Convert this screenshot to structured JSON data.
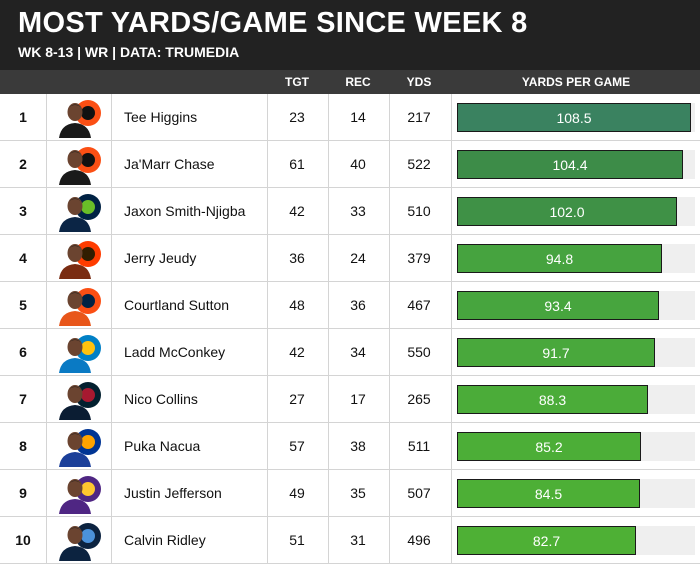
{
  "header": {
    "title": "MOST YARDS/GAME SINCE WEEK 8",
    "subtitle": "WK 8-13 | WR | DATA: TRUMEDIA"
  },
  "columns": {
    "tgt": "TGT",
    "rec": "REC",
    "yds": "YDS",
    "ypg": "YARDS PER GAME"
  },
  "chart_data": {
    "type": "table",
    "title": "MOST YARDS/GAME SINCE WEEK 8",
    "subtitle": "WK 8-13 | WR | DATA: TRUMEDIA",
    "columns": [
      "TGT",
      "REC",
      "YDS",
      "YARDS PER GAME"
    ],
    "bar_column": "YARDS PER GAME",
    "bar_max": 108.5,
    "rows": [
      {
        "rank": "1",
        "player": "Tee Higgins",
        "team_logo": "bengals-logo-icon",
        "tgt": 23,
        "rec": 14,
        "yds": 217,
        "ypg": 108.5,
        "bar_color": "#3a8260"
      },
      {
        "rank": "2",
        "player": "Ja'Marr Chase",
        "team_logo": "bengals-logo-icon",
        "tgt": 61,
        "rec": 40,
        "yds": 522,
        "ypg": 104.4,
        "bar_color": "#3d8c48"
      },
      {
        "rank": "3",
        "player": "Jaxon Smith-Njigba",
        "team_logo": "seahawks-logo-icon",
        "tgt": 42,
        "rec": 33,
        "yds": 510,
        "ypg": 102.0,
        "bar_color": "#3f9146"
      },
      {
        "rank": "4",
        "player": "Jerry Jeudy",
        "team_logo": "browns-logo-icon",
        "tgt": 36,
        "rec": 24,
        "yds": 379,
        "ypg": 94.8,
        "bar_color": "#46a33f"
      },
      {
        "rank": "5",
        "player": "Courtland Sutton",
        "team_logo": "broncos-logo-icon",
        "tgt": 48,
        "rec": 36,
        "yds": 467,
        "ypg": 93.4,
        "bar_color": "#47a53e"
      },
      {
        "rank": "6",
        "player": "Ladd McConkey",
        "team_logo": "chargers-logo-icon",
        "tgt": 42,
        "rec": 34,
        "yds": 550,
        "ypg": 91.7,
        "bar_color": "#49a83c"
      },
      {
        "rank": "7",
        "player": "Nico Collins",
        "team_logo": "texans-logo-icon",
        "tgt": 27,
        "rec": 17,
        "yds": 265,
        "ypg": 88.3,
        "bar_color": "#4bac39"
      },
      {
        "rank": "8",
        "player": "Puka Nacua",
        "team_logo": "rams-logo-icon",
        "tgt": 57,
        "rec": 38,
        "yds": 511,
        "ypg": 85.2,
        "bar_color": "#4cae37"
      },
      {
        "rank": "9",
        "player": "Justin Jefferson",
        "team_logo": "vikings-logo-icon",
        "tgt": 49,
        "rec": 35,
        "yds": 507,
        "ypg": 84.5,
        "bar_color": "#4daf36"
      },
      {
        "rank": "10",
        "player": "Calvin Ridley",
        "team_logo": "titans-logo-icon",
        "tgt": 51,
        "rec": 31,
        "yds": 496,
        "ypg": 82.7,
        "bar_color": "#4eb035"
      }
    ]
  },
  "team_colors": {
    "bengals-logo-icon": [
      "#fb4f14",
      "#111111"
    ],
    "seahawks-logo-icon": [
      "#002244",
      "#69be28"
    ],
    "browns-logo-icon": [
      "#ff3c00",
      "#311d00"
    ],
    "broncos-logo-icon": [
      "#fb4f14",
      "#002244"
    ],
    "chargers-logo-icon": [
      "#0080c6",
      "#ffc20e"
    ],
    "texans-logo-icon": [
      "#03202f",
      "#a71930"
    ],
    "rams-logo-icon": [
      "#003594",
      "#ffa300"
    ],
    "vikings-logo-icon": [
      "#4f2683",
      "#ffc62f"
    ],
    "titans-logo-icon": [
      "#0c2340",
      "#4b92db"
    ]
  },
  "jersey_colors": [
    "#1a1a1a",
    "#1a1a1a",
    "#0b2545",
    "#7a2c12",
    "#e8561a",
    "#0a7ac4",
    "#0b1d33",
    "#1b3f99",
    "#4f2683",
    "#0c2340"
  ]
}
